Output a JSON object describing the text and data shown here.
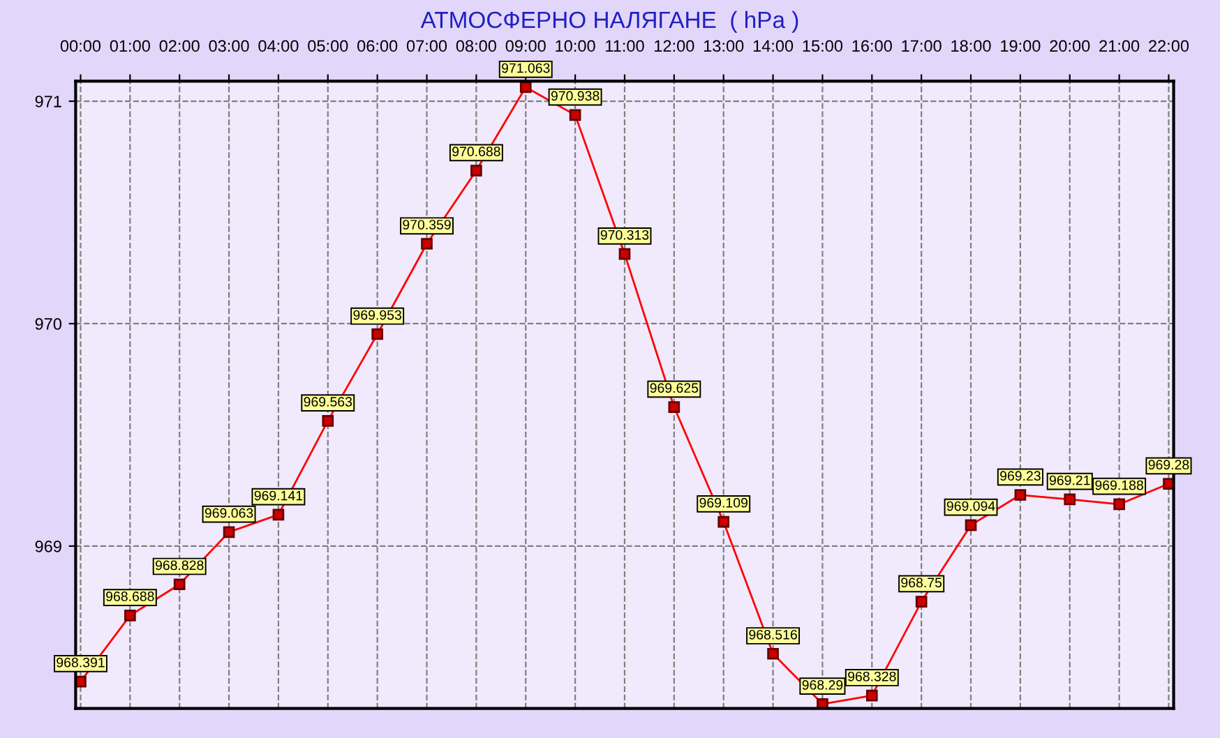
{
  "chart_data": {
    "type": "line",
    "title": "АТМОСФЕРНО НАЛЯГАНЕ  ( hPa )",
    "categories": [
      "00:00",
      "01:00",
      "02:00",
      "03:00",
      "04:00",
      "05:00",
      "06:00",
      "07:00",
      "08:00",
      "09:00",
      "10:00",
      "11:00",
      "12:00",
      "13:00",
      "14:00",
      "15:00",
      "16:00",
      "17:00",
      "18:00",
      "19:00",
      "20:00",
      "21:00",
      "22:00"
    ],
    "series": [
      {
        "color": "#ff0000",
        "values": [
          968.391,
          968.688,
          968.828,
          969.063,
          969.141,
          969.563,
          969.953,
          970.359,
          970.688,
          971.063,
          970.938,
          970.313,
          969.625,
          969.109,
          968.516,
          968.29,
          968.328,
          968.75,
          969.094,
          969.23,
          969.21,
          969.188,
          969.28
        ],
        "value_labels": [
          "968.391",
          "968.688",
          "968.828",
          "969.063",
          "969.141",
          "969.563",
          "969.953",
          "970.359",
          "970.688",
          "971.063",
          "970.938",
          "970.313",
          "969.625",
          "969.109",
          "968.516",
          "968.29",
          "968.328",
          "968.75",
          "969.094",
          "969.23",
          "969.21",
          "969.188",
          "969.28"
        ]
      }
    ],
    "ylim": [
      968.27,
      971.09
    ],
    "yticks": [
      969,
      970,
      971
    ],
    "grid": true,
    "marker": "square",
    "line_style": "solid",
    "legend": false
  }
}
